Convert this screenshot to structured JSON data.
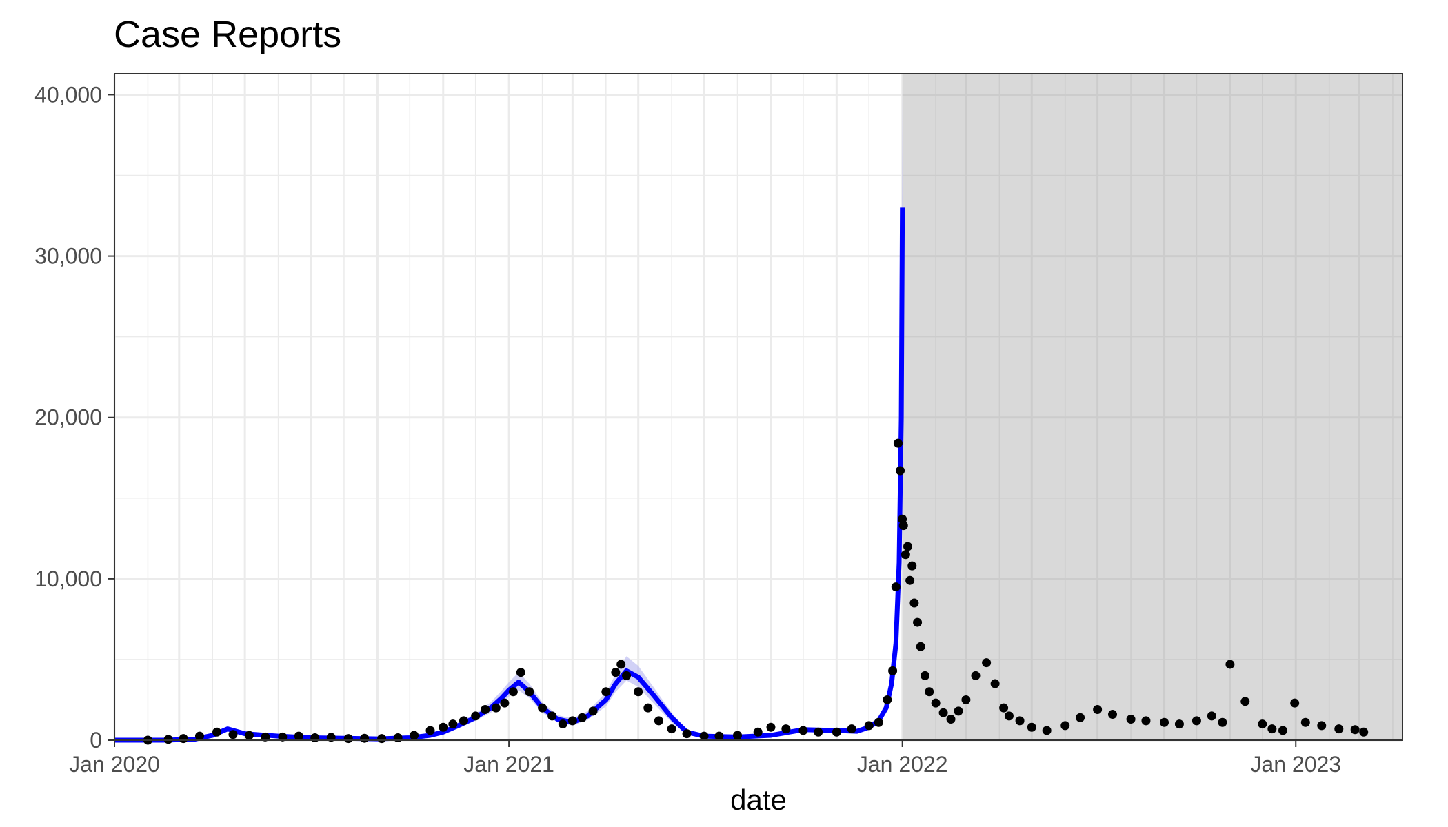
{
  "chart_data": {
    "type": "line",
    "title": "Case Reports",
    "xlabel": "date",
    "ylabel": "",
    "xlim": [
      "2020-01-01",
      "2023-04-10"
    ],
    "ylim": [
      0,
      41300
    ],
    "x_ticks": [
      {
        "value": "2020-01-01",
        "label": "Jan 2020"
      },
      {
        "value": "2021-01-01",
        "label": "Jan 2021"
      },
      {
        "value": "2022-01-01",
        "label": "Jan 2022"
      },
      {
        "value": "2023-01-01",
        "label": "Jan 2023"
      }
    ],
    "y_ticks": [
      {
        "value": 0,
        "label": "0"
      },
      {
        "value": 10000,
        "label": "10,000"
      },
      {
        "value": 20000,
        "label": "20,000"
      },
      {
        "value": 30000,
        "label": "30,000"
      },
      {
        "value": 40000,
        "label": "40,000"
      }
    ],
    "grid": true,
    "forecast_region": {
      "start": "2022-01-01",
      "end": "2023-04-10",
      "color": "#d9d9d9"
    },
    "colors": {
      "fit_line": "#0000ff",
      "fit_band": "#b3b3f0",
      "points": "#000000",
      "panel_border": "#333333",
      "grid": "#ebebeb",
      "shaded_grid": "#cccccc"
    },
    "series": [
      {
        "kind": "fitted_line",
        "x": [
          "2020-01-01",
          "2020-02-15",
          "2020-03-15",
          "2020-04-01",
          "2020-04-15",
          "2020-05-01",
          "2020-06-01",
          "2020-07-01",
          "2020-08-01",
          "2020-09-01",
          "2020-10-01",
          "2020-10-20",
          "2020-11-01",
          "2020-11-15",
          "2020-12-01",
          "2020-12-15",
          "2020-12-25",
          "2021-01-01",
          "2021-01-10",
          "2021-01-20",
          "2021-02-01",
          "2021-02-15",
          "2021-03-01",
          "2021-03-15",
          "2021-04-01",
          "2021-04-10",
          "2021-04-20",
          "2021-05-01",
          "2021-05-15",
          "2021-06-01",
          "2021-06-15",
          "2021-07-01",
          "2021-08-01",
          "2021-09-01",
          "2021-10-01",
          "2021-11-01",
          "2021-11-20",
          "2021-12-01",
          "2021-12-10",
          "2021-12-17",
          "2021-12-22",
          "2021-12-26",
          "2021-12-29",
          "2021-12-31",
          "2022-01-01"
        ],
        "y": [
          0,
          0,
          50,
          300,
          700,
          400,
          250,
          150,
          120,
          80,
          150,
          300,
          500,
          900,
          1400,
          2000,
          2600,
          3100,
          3600,
          3000,
          2000,
          1300,
          1100,
          1500,
          2500,
          3500,
          4300,
          3900,
          2800,
          1400,
          500,
          250,
          200,
          300,
          650,
          600,
          550,
          800,
          1200,
          2000,
          3500,
          6000,
          11000,
          20000,
          33000
        ],
        "lower": [
          0,
          0,
          0,
          200,
          550,
          300,
          180,
          100,
          80,
          50,
          100,
          220,
          400,
          750,
          1200,
          1700,
          2200,
          2700,
          3100,
          2600,
          1700,
          1100,
          900,
          1250,
          2100,
          3000,
          3700,
          3300,
          2300,
          1100,
          380,
          180,
          150,
          230,
          520,
          480,
          440,
          650,
          1000,
          1700,
          3000,
          5200,
          9500,
          17500,
          29000
        ],
        "upper": [
          100,
          100,
          100,
          400,
          850,
          500,
          320,
          200,
          160,
          110,
          200,
          380,
          620,
          1100,
          1650,
          2350,
          3050,
          3600,
          4200,
          3500,
          2350,
          1550,
          1350,
          1800,
          2950,
          4100,
          5200,
          4600,
          3300,
          1700,
          620,
          320,
          260,
          380,
          800,
          740,
          680,
          980,
          1450,
          2400,
          4100,
          7000,
          13000,
          24000,
          40500
        ]
      },
      {
        "kind": "observed_points",
        "x": [
          "2020-02-01",
          "2020-02-20",
          "2020-03-05",
          "2020-03-20",
          "2020-04-05",
          "2020-04-20",
          "2020-05-05",
          "2020-05-20",
          "2020-06-05",
          "2020-06-20",
          "2020-07-05",
          "2020-07-20",
          "2020-08-05",
          "2020-08-20",
          "2020-09-05",
          "2020-09-20",
          "2020-10-05",
          "2020-10-20",
          "2020-11-01",
          "2020-11-10",
          "2020-11-20",
          "2020-12-01",
          "2020-12-10",
          "2020-12-20",
          "2020-12-28",
          "2021-01-05",
          "2021-01-12",
          "2021-01-20",
          "2021-02-01",
          "2021-02-10",
          "2021-02-20",
          "2021-03-01",
          "2021-03-10",
          "2021-03-20",
          "2021-04-01",
          "2021-04-10",
          "2021-04-15",
          "2021-04-20",
          "2021-05-01",
          "2021-05-10",
          "2021-05-20",
          "2021-06-01",
          "2021-06-15",
          "2021-07-01",
          "2021-07-15",
          "2021-08-01",
          "2021-08-20",
          "2021-09-01",
          "2021-09-15",
          "2021-10-01",
          "2021-10-15",
          "2021-11-01",
          "2021-11-15",
          "2021-12-01",
          "2021-12-10",
          "2021-12-18",
          "2021-12-23",
          "2021-12-26",
          "2021-12-28",
          "2021-12-30",
          "2022-01-01",
          "2022-01-02",
          "2022-01-04",
          "2022-01-06",
          "2022-01-08",
          "2022-01-10",
          "2022-01-12",
          "2022-01-15",
          "2022-01-18",
          "2022-01-22",
          "2022-01-26",
          "2022-02-01",
          "2022-02-08",
          "2022-02-15",
          "2022-02-22",
          "2022-03-01",
          "2022-03-10",
          "2022-03-20",
          "2022-03-28",
          "2022-04-05",
          "2022-04-10",
          "2022-04-20",
          "2022-05-01",
          "2022-05-15",
          "2022-06-01",
          "2022-06-15",
          "2022-07-01",
          "2022-07-15",
          "2022-08-01",
          "2022-08-15",
          "2022-09-01",
          "2022-09-15",
          "2022-10-01",
          "2022-10-15",
          "2022-10-25",
          "2022-11-01",
          "2022-11-15",
          "2022-12-01",
          "2022-12-10",
          "2022-12-20",
          "2022-12-31",
          "2023-01-10",
          "2023-01-25",
          "2023-02-10",
          "2023-02-25",
          "2023-03-05"
        ],
        "y": [
          0,
          50,
          100,
          250,
          500,
          350,
          300,
          200,
          200,
          250,
          150,
          180,
          100,
          120,
          100,
          150,
          300,
          600,
          800,
          1000,
          1200,
          1500,
          1900,
          2000,
          2300,
          3000,
          4200,
          3000,
          2000,
          1500,
          1000,
          1200,
          1400,
          1800,
          3000,
          4200,
          4700,
          4000,
          3000,
          2000,
          1200,
          700,
          400,
          250,
          250,
          300,
          500,
          800,
          700,
          600,
          500,
          500,
          700,
          900,
          1100,
          2500,
          4300,
          9500,
          18400,
          16700,
          13700,
          13300,
          11500,
          12000,
          9900,
          10800,
          8500,
          7300,
          5800,
          4000,
          3000,
          2300,
          1700,
          1300,
          1800,
          2500,
          4000,
          4800,
          3500,
          2000,
          1500,
          1200,
          800,
          600,
          900,
          1400,
          1900,
          1600,
          1300,
          1200,
          1100,
          1000,
          1200,
          1500,
          1100,
          4700,
          2400,
          1000,
          700,
          600,
          2300,
          1100,
          900,
          700,
          650,
          500
        ]
      }
    ]
  }
}
